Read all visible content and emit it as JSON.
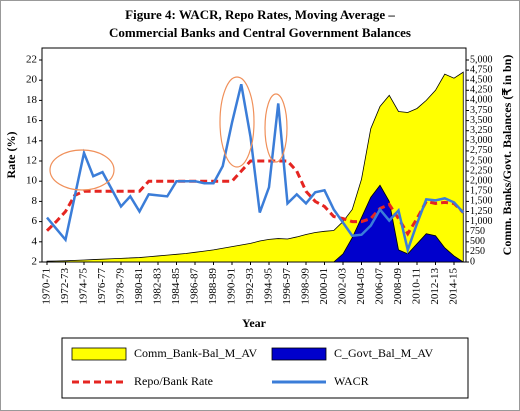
{
  "chart_data": {
    "type": "combo",
    "title": [
      "Figure 4: WACR, Repo Rates, Moving Average –",
      "Commercial Banks and Central Government Balances"
    ],
    "x_label": "Year",
    "y_label": "Rate (%)",
    "y2_label": "Comm. Banks/Govt. Balances (₹ in bn)",
    "categories": [
      "1970-71",
      null,
      "1972-73",
      null,
      "1974-75",
      null,
      "1976-77",
      null,
      "1978-79",
      null,
      "1980-81",
      null,
      "1982-83",
      null,
      "1984-85",
      null,
      "1986-87",
      null,
      "1988-89",
      null,
      "1990-91",
      null,
      "1992-93",
      null,
      "1994-95",
      null,
      "1996-97",
      null,
      "1998-99",
      null,
      "2000-01",
      null,
      "2002-03",
      null,
      "2004-05",
      null,
      "2006-07",
      null,
      "2008-09",
      null,
      "2010-11",
      null,
      "2012-13",
      null,
      "2014-15",
      null
    ],
    "ylim": [
      2,
      22
    ],
    "yticks": [
      2,
      4,
      6,
      8,
      10,
      12,
      14,
      16,
      18,
      20,
      22
    ],
    "y2lim": [
      0,
      5000
    ],
    "y2ticks": [
      0,
      250,
      500,
      750,
      {
        "value": 1000,
        "label": "1,000"
      },
      {
        "value": 1250,
        "label": "1,250"
      },
      {
        "value": 1500,
        "label": "1,500"
      },
      {
        "value": 1750,
        "label": "1,750"
      },
      {
        "value": 2000,
        "label": "2,000"
      },
      {
        "value": 2250,
        "label": "2,250"
      },
      {
        "value": 2500,
        "label": "2,500"
      },
      {
        "value": 2750,
        "label": "2,750"
      },
      {
        "value": 3000,
        "label": "3,000"
      },
      {
        "value": 3250,
        "label": "3,250"
      },
      {
        "value": 3500,
        "label": "3,500"
      },
      {
        "value": 3750,
        "label": "3,750"
      },
      {
        "value": 4000,
        "label": "4,000"
      },
      {
        "value": 4250,
        "label": "4,250"
      },
      {
        "value": 4500,
        "label": "4,500"
      },
      {
        "value": 4750,
        "label": "4,750"
      },
      {
        "value": 5000,
        "label": "5,000"
      }
    ],
    "grid": false,
    "series": [
      {
        "name": "Comm_Bank-Bal_M_AV",
        "type": "area",
        "axis": "y2",
        "color": "#ffff00",
        "values": [
          20,
          25,
          30,
          40,
          50,
          60,
          70,
          80,
          90,
          100,
          110,
          130,
          150,
          170,
          190,
          210,
          240,
          270,
          300,
          340,
          380,
          420,
          460,
          520,
          560,
          580,
          570,
          620,
          680,
          730,
          760,
          780,
          1000,
          1300,
          2050,
          3300,
          3850,
          4125,
          3725,
          3700,
          3800,
          4000,
          4250,
          4650,
          4550,
          4700
        ]
      },
      {
        "name": "C_Govt_Bal_M_AV",
        "type": "area",
        "axis": "y2",
        "color": "#0000cc",
        "values": [
          0,
          0,
          0,
          0,
          0,
          0,
          0,
          0,
          0,
          0,
          0,
          0,
          0,
          0,
          0,
          0,
          0,
          0,
          0,
          0,
          0,
          0,
          0,
          0,
          0,
          0,
          0,
          0,
          0,
          0,
          0,
          0,
          200,
          600,
          1100,
          1600,
          1900,
          1500,
          300,
          200,
          450,
          700,
          650,
          350,
          150,
          0
        ]
      },
      {
        "name": "Repo/Bank Rate",
        "type": "line",
        "dashed": true,
        "color": "#e52521",
        "values": [
          5.1,
          6,
          7,
          8.6,
          9,
          9,
          9,
          9,
          9,
          9,
          9,
          10,
          10,
          10,
          10,
          10,
          10,
          10,
          10,
          10,
          10,
          11,
          12,
          12,
          12,
          12,
          12,
          11,
          9,
          8,
          7.5,
          6.5,
          6.3,
          6,
          6,
          6.3,
          7.3,
          7.7,
          6.3,
          4.8,
          6.3,
          8,
          7.8,
          7.9,
          7.8,
          6.9
        ]
      },
      {
        "name": "WACR",
        "type": "line",
        "dashed": false,
        "color": "#3b7dd8",
        "values": [
          6.4,
          5.3,
          4.2,
          8.5,
          12.8,
          10.5,
          10.9,
          9.2,
          7.5,
          8.5,
          7,
          8.7,
          8.6,
          8.5,
          10,
          10,
          10,
          9.8,
          9.8,
          11.5,
          15.8,
          19.6,
          14.4,
          6.9,
          9.4,
          17.7,
          7.8,
          8.7,
          7.8,
          8.9,
          9.1,
          7.2,
          5.9,
          4.6,
          4.7,
          5.6,
          7.2,
          6.1,
          7.1,
          3.2,
          5.8,
          8.2,
          8.1,
          8.3,
          7.9,
          6.9
        ]
      }
    ]
  }
}
